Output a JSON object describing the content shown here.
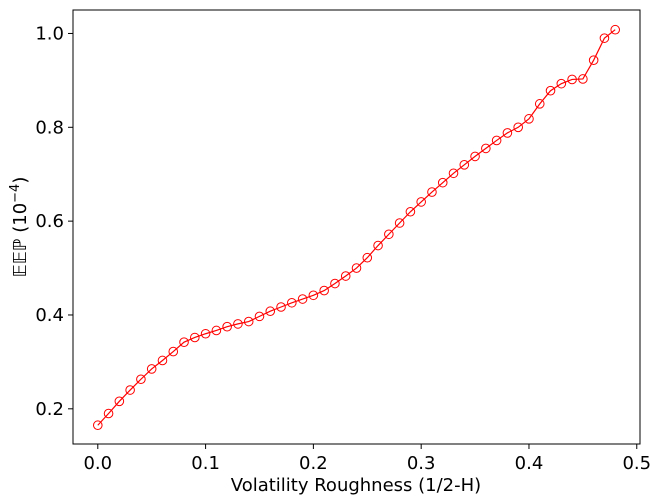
{
  "chart_data": {
    "type": "line",
    "xlabel": "Volatility Roughness (1/2-H)",
    "ylabel_main": "𝔼𝔼ℙ (10",
    "ylabel_exp": "−4",
    "ylabel_close": ")",
    "xlim": [
      -0.023,
      0.503
    ],
    "ylim": [
      0.125,
      1.05
    ],
    "xticks": [
      0.0,
      0.1,
      0.2,
      0.3,
      0.4,
      0.5
    ],
    "xtick_labels": [
      "0.0",
      "0.1",
      "0.2",
      "0.3",
      "0.4",
      "0.5"
    ],
    "yticks": [
      0.2,
      0.4,
      0.6,
      0.8,
      1.0
    ],
    "ytick_labels": [
      "0.2",
      "0.4",
      "0.6",
      "0.8",
      "1.0"
    ],
    "grid": false,
    "series": [
      {
        "color": "#ff0000",
        "marker": "open-circle",
        "x": [
          0.0,
          0.01,
          0.02,
          0.03,
          0.04,
          0.05,
          0.06,
          0.07,
          0.08,
          0.09,
          0.1,
          0.11,
          0.12,
          0.13,
          0.14,
          0.15,
          0.16,
          0.17,
          0.18,
          0.19,
          0.2,
          0.21,
          0.22,
          0.23,
          0.24,
          0.25,
          0.26,
          0.27,
          0.28,
          0.29,
          0.3,
          0.31,
          0.32,
          0.33,
          0.34,
          0.35,
          0.36,
          0.37,
          0.38,
          0.39,
          0.4,
          0.41,
          0.42,
          0.43,
          0.44,
          0.45,
          0.46,
          0.47,
          0.48
        ],
        "y": [
          0.165,
          0.19,
          0.216,
          0.24,
          0.263,
          0.285,
          0.303,
          0.322,
          0.342,
          0.352,
          0.36,
          0.367,
          0.375,
          0.381,
          0.386,
          0.397,
          0.408,
          0.417,
          0.426,
          0.434,
          0.442,
          0.452,
          0.467,
          0.483,
          0.5,
          0.522,
          0.548,
          0.572,
          0.596,
          0.62,
          0.641,
          0.662,
          0.682,
          0.702,
          0.72,
          0.738,
          0.755,
          0.772,
          0.788,
          0.8,
          0.818,
          0.85,
          0.878,
          0.893,
          0.902,
          0.903,
          0.943,
          0.99,
          1.008
        ]
      }
    ]
  }
}
